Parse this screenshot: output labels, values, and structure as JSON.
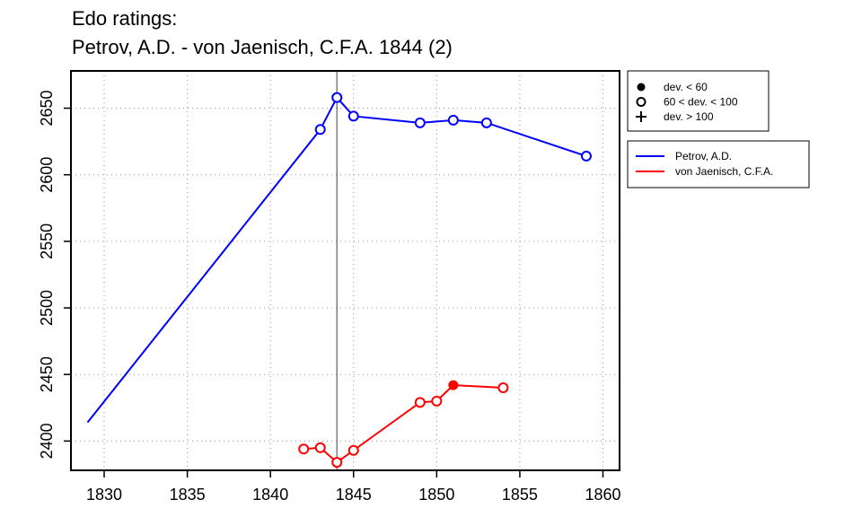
{
  "chart_data": {
    "type": "line",
    "title_lines": [
      "Edo ratings:",
      "Petrov, A.D. - von Jaenisch, C.F.A. 1844 (2)"
    ],
    "xlim": [
      1828,
      1861
    ],
    "ylim": [
      2378,
      2678
    ],
    "x_ticks": [
      1830,
      1835,
      1840,
      1845,
      1850,
      1855,
      1860
    ],
    "y_ticks": [
      2400,
      2450,
      2500,
      2550,
      2600,
      2650
    ],
    "grid": "dotted",
    "reference_line_x": 1844,
    "series": [
      {
        "name": "Petrov, A.D.",
        "color": "#0000ff",
        "points": [
          {
            "x": 1829,
            "y": 2414,
            "marker": "none"
          },
          {
            "x": 1843,
            "y": 2634,
            "marker": "open"
          },
          {
            "x": 1844,
            "y": 2658,
            "marker": "open"
          },
          {
            "x": 1845,
            "y": 2644,
            "marker": "open"
          },
          {
            "x": 1849,
            "y": 2639,
            "marker": "open"
          },
          {
            "x": 1851,
            "y": 2641,
            "marker": "open"
          },
          {
            "x": 1853,
            "y": 2639,
            "marker": "open"
          },
          {
            "x": 1859,
            "y": 2614,
            "marker": "open"
          }
        ]
      },
      {
        "name": "von Jaenisch, C.F.A.",
        "color": "#ff0000",
        "points": [
          {
            "x": 1842,
            "y": 2394,
            "marker": "open"
          },
          {
            "x": 1843,
            "y": 2395,
            "marker": "open"
          },
          {
            "x": 1844,
            "y": 2384,
            "marker": "open"
          },
          {
            "x": 1845,
            "y": 2393,
            "marker": "open"
          },
          {
            "x": 1849,
            "y": 2429,
            "marker": "open"
          },
          {
            "x": 1850,
            "y": 2430,
            "marker": "open"
          },
          {
            "x": 1851,
            "y": 2442,
            "marker": "filled"
          },
          {
            "x": 1854,
            "y": 2440,
            "marker": "open"
          }
        ]
      }
    ],
    "marker_legend": [
      {
        "symbol": "filled",
        "label": "dev. < 60"
      },
      {
        "symbol": "open",
        "label": "60 < dev. < 100"
      },
      {
        "symbol": "plus",
        "label": "dev. > 100"
      }
    ],
    "legend_position": "right"
  }
}
